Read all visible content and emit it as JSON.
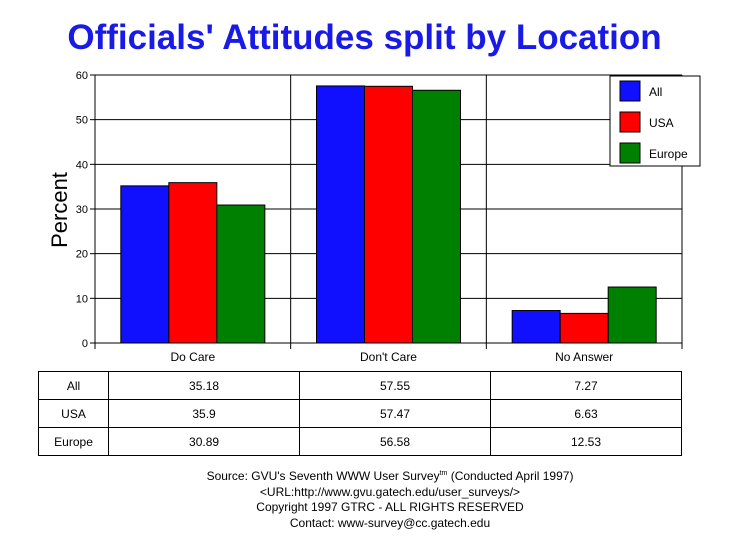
{
  "chart_data": {
    "type": "bar",
    "title": "Officials' Attitudes split by Location",
    "ylabel": "Percent",
    "xlabel": "",
    "ylim": [
      0,
      60
    ],
    "yticks": [
      0,
      10,
      20,
      30,
      40,
      50,
      60
    ],
    "grid": true,
    "legend_position": "top-right",
    "categories": [
      "Do Care",
      "Don't Care",
      "No Answer"
    ],
    "series": [
      {
        "name": "All",
        "color": "#1010ff",
        "values": [
          35.18,
          57.55,
          7.27
        ]
      },
      {
        "name": "USA",
        "color": "#ff0000",
        "values": [
          35.9,
          57.47,
          6.63
        ]
      },
      {
        "name": "Europe",
        "color": "#008000",
        "values": [
          30.89,
          56.58,
          12.53
        ]
      }
    ]
  },
  "table": {
    "rows": [
      {
        "label": "All",
        "values": [
          "35.18",
          "57.55",
          "7.27"
        ]
      },
      {
        "label": "USA",
        "values": [
          "35.9",
          "57.47",
          "6.63"
        ]
      },
      {
        "label": "Europe",
        "values": [
          "30.89",
          "56.58",
          "12.53"
        ]
      }
    ]
  },
  "footer": {
    "source_prefix": "Source: GVU's Seventh WWW User Survey",
    "source_tm": "tm",
    "source_suffix": " (Conducted April 1997)",
    "url": "<URL:http://www.gvu.gatech.edu/user_surveys/>",
    "copyright": "Copyright 1997 GTRC - ALL RIGHTS RESERVED",
    "contact": "Contact: www-survey@cc.gatech.edu"
  }
}
